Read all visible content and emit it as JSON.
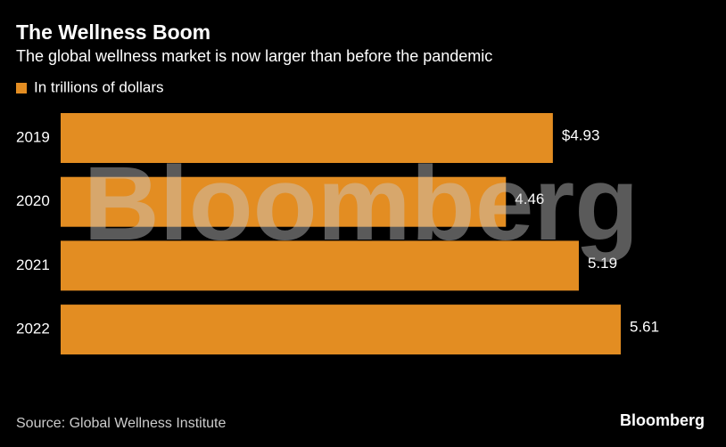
{
  "chart_data": {
    "type": "bar",
    "orientation": "horizontal",
    "title": "The Wellness Boom",
    "subtitle": "The global wellness market is now larger than before the pandemic",
    "categories": [
      "2019",
      "2020",
      "2021",
      "2022"
    ],
    "series": [
      {
        "name": "In trillions of dollars",
        "color": "#e38d22",
        "values": [
          4.93,
          4.46,
          5.19,
          5.61
        ],
        "value_labels": [
          "$4.93",
          "4.46",
          "5.19",
          "5.61"
        ]
      }
    ],
    "source": "Source: Global Wellness Institute",
    "watermark": "Bloomberg",
    "logo": "Bloomberg"
  }
}
